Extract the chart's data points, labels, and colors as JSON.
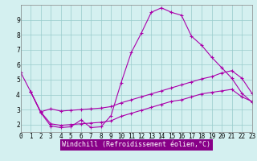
{
  "title": "",
  "xlabel": "Windchill (Refroidissement éolien,°C)",
  "background_color": "#d4f0f0",
  "line_color": "#aa00aa",
  "grid_color": "#99cccc",
  "x_ticks": [
    0,
    1,
    2,
    3,
    4,
    5,
    6,
    7,
    8,
    9,
    10,
    11,
    12,
    13,
    14,
    15,
    16,
    17,
    18,
    19,
    20,
    21,
    22,
    23
  ],
  "y_ticks": [
    2,
    3,
    4,
    5,
    6,
    7,
    8,
    9
  ],
  "ylim": [
    1.5,
    10.0
  ],
  "xlim": [
    0,
    23
  ],
  "line1_x": [
    0,
    1,
    2,
    3,
    4,
    5,
    6,
    7,
    8,
    9,
    10,
    11,
    12,
    13,
    14,
    15,
    16,
    17,
    18,
    19,
    20,
    21,
    22,
    23
  ],
  "line1_y": [
    5.5,
    4.2,
    2.8,
    1.9,
    1.8,
    1.85,
    2.3,
    1.8,
    1.85,
    2.6,
    4.8,
    6.8,
    8.1,
    9.5,
    9.8,
    9.5,
    9.3,
    7.9,
    7.3,
    6.5,
    5.8,
    5.1,
    4.1,
    3.5
  ],
  "line2_x": [
    1,
    2,
    3,
    4,
    5,
    6,
    7,
    8,
    9,
    10,
    11,
    12,
    13,
    14,
    15,
    16,
    17,
    18,
    19,
    20,
    21,
    22,
    23
  ],
  "line2_y": [
    4.2,
    2.85,
    3.05,
    2.9,
    2.95,
    3.0,
    3.05,
    3.1,
    3.2,
    3.45,
    3.65,
    3.85,
    4.05,
    4.25,
    4.45,
    4.65,
    4.85,
    5.05,
    5.2,
    5.45,
    5.6,
    5.1,
    4.1
  ],
  "line3_x": [
    1,
    2,
    3,
    4,
    5,
    6,
    7,
    8,
    9,
    10,
    11,
    12,
    13,
    14,
    15,
    16,
    17,
    18,
    19,
    20,
    21,
    22,
    23
  ],
  "line3_y": [
    4.2,
    2.85,
    2.05,
    1.95,
    2.0,
    2.05,
    2.1,
    2.15,
    2.25,
    2.55,
    2.75,
    2.95,
    3.15,
    3.35,
    3.55,
    3.65,
    3.85,
    4.05,
    4.15,
    4.25,
    4.35,
    3.85,
    3.55
  ],
  "xlabel_bg": "#880088",
  "xlabel_fg": "#ffffff",
  "spine_color": "#888888",
  "tick_fontsize": 5.5,
  "label_fontsize": 6.0
}
